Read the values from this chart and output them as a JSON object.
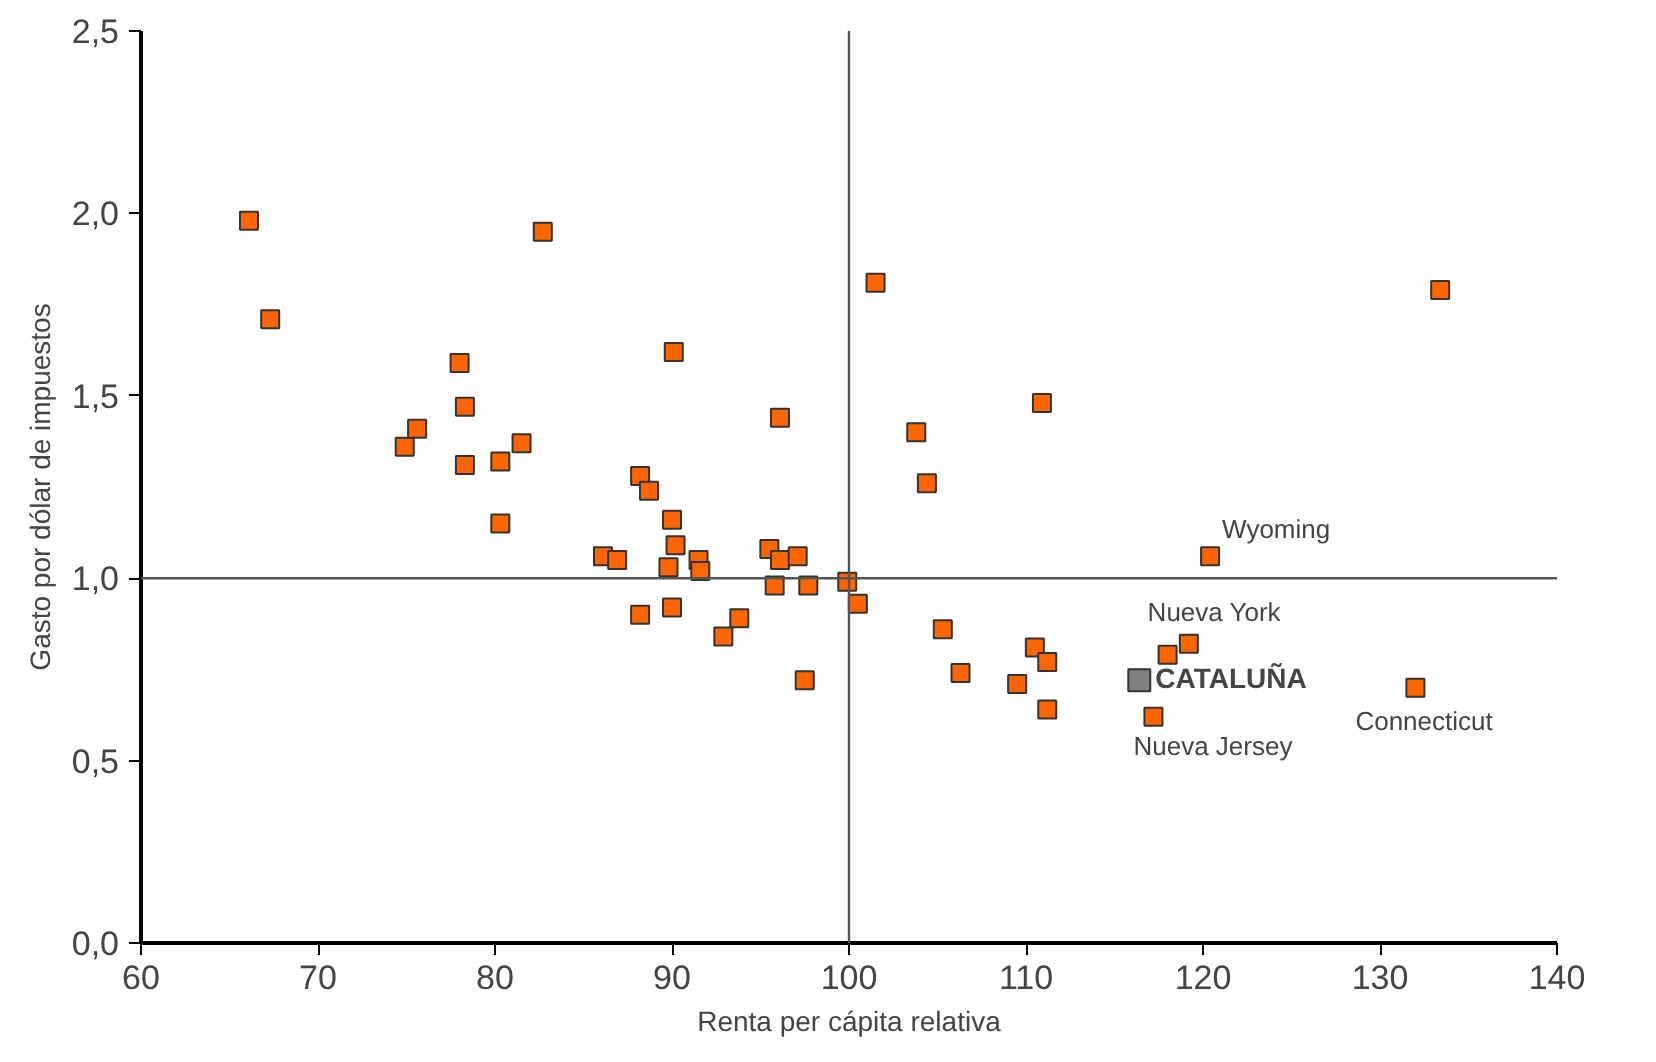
{
  "chart_data": {
    "type": "scatter",
    "xlabel": "Renta per cápita relativa",
    "ylabel": "Gasto por dólar de impuestos",
    "xlim": [
      60,
      140
    ],
    "xticks": [
      60,
      70,
      80,
      90,
      100,
      110,
      120,
      130,
      140
    ],
    "ylim": [
      0,
      2.5
    ],
    "yticks": [
      {
        "value": 0,
        "label": "0,0"
      },
      {
        "value": 0.5,
        "label": "0,5"
      },
      {
        "value": 1,
        "label": "1,0"
      },
      {
        "value": 1.5,
        "label": "1,5"
      },
      {
        "value": 2,
        "label": "2,0"
      },
      {
        "value": 2.5,
        "label": "2,5"
      }
    ],
    "marker": "square",
    "grid": false,
    "ref_lines": [
      {
        "axis": "x",
        "value": 100,
        "color": "#555555"
      },
      {
        "axis": "y",
        "value": 1.0,
        "color": "#555555"
      }
    ],
    "series": [
      {
        "color": "#ff6600",
        "x": [
          66.1,
          67.3,
          74.9,
          75.6,
          78.0,
          78.3,
          78.3,
          80.3,
          80.3,
          81.5,
          82.7,
          86.1,
          86.9,
          88.2,
          88.7,
          88.2,
          90.1,
          90.0,
          90.2,
          89.8,
          90.0,
          91.5,
          91.6,
          92.9,
          93.8,
          95.5,
          95.8,
          96.1,
          96.1,
          97.1,
          97.7,
          97.5,
          99.9,
          100.5,
          101.5,
          103.8,
          104.4,
          105.3,
          106.3,
          109.5,
          110.5,
          111.2,
          111.2,
          110.9,
          118.0,
          119.2,
          117.2,
          120.4,
          132.0,
          133.4
        ],
        "values": [
          1.98,
          1.71,
          1.36,
          1.41,
          1.59,
          1.47,
          1.31,
          1.32,
          1.15,
          1.37,
          1.95,
          1.06,
          1.05,
          1.28,
          1.24,
          0.9,
          1.62,
          1.16,
          1.09,
          1.03,
          0.92,
          1.05,
          1.02,
          0.84,
          0.89,
          1.08,
          0.98,
          1.44,
          1.05,
          1.06,
          0.98,
          0.72,
          0.99,
          0.93,
          1.81,
          1.4,
          1.26,
          0.86,
          0.74,
          0.71,
          0.81,
          0.77,
          0.64,
          1.48,
          0.79,
          0.82,
          0.62,
          1.06,
          0.7,
          1.79
        ]
      },
      {
        "name": "CATALUÑA",
        "color": "#808080",
        "x": [
          116.4
        ],
        "values": [
          0.72
        ]
      }
    ],
    "annotations": [
      {
        "text": "Wyoming",
        "x": 120.4,
        "y": 1.06
      },
      {
        "text": "Nueva York",
        "x": 118.0,
        "y": 0.79
      },
      {
        "text": "Nueva Jersey",
        "x": 117.2,
        "y": 0.62
      },
      {
        "text": "Connecticut",
        "x": 132.0,
        "y": 0.7
      }
    ]
  }
}
